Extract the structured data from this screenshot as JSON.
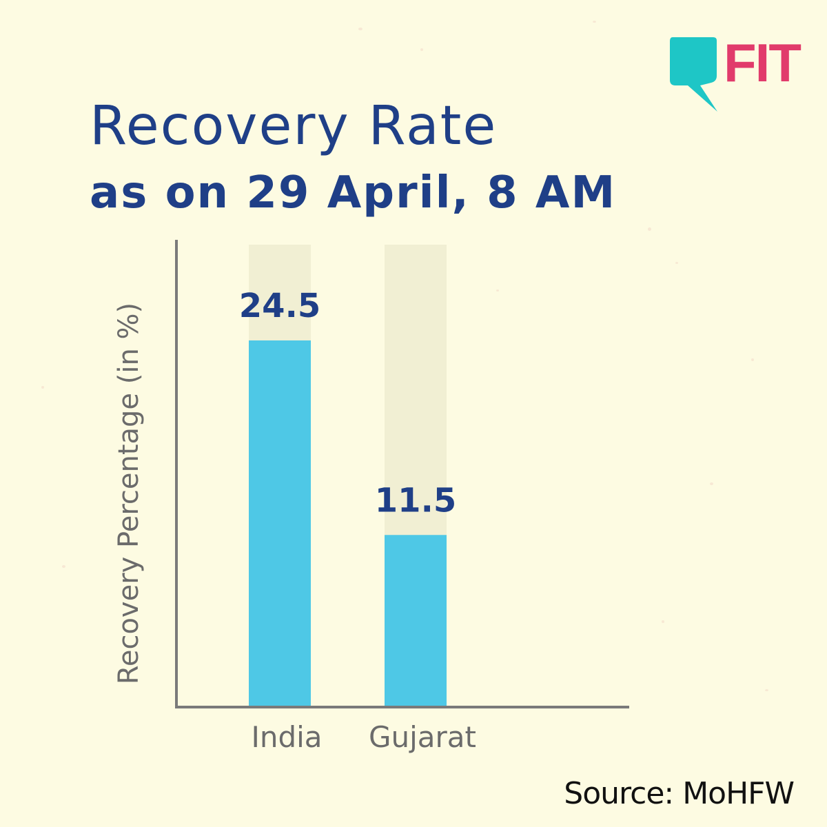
{
  "brand": {
    "logo_text": "FIT",
    "bubble_color": "#1ec6c6",
    "text_color": "#e13b6b"
  },
  "title": {
    "line1": "Recovery Rate",
    "line2": "as on 29 April, 8 AM"
  },
  "source": "Source: MoHFW",
  "chart_data": {
    "type": "bar",
    "categories": [
      "India",
      "Gujarat"
    ],
    "values": [
      24.5,
      11.5
    ],
    "value_labels": [
      "24.5",
      "11.5"
    ],
    "ylabel": "Recovery Percentage (in %)",
    "xlabel": "",
    "ylim": [
      0,
      30.9
    ],
    "colors": {
      "bar": "#4ec8e6",
      "bar_track": "#f1efd3",
      "axis": "#7a7a7a",
      "text": "#1f3f87"
    },
    "grid": false
  }
}
